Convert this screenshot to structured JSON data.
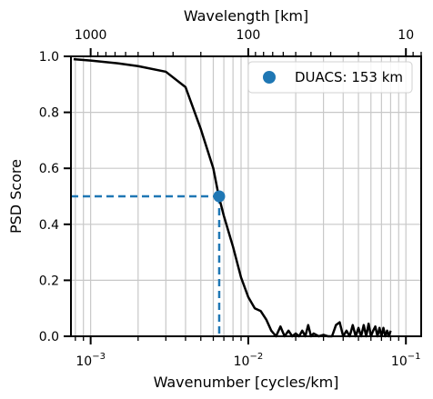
{
  "chart_data": {
    "type": "line",
    "xscale": "log",
    "xlim": [
      0.00075,
      0.125
    ],
    "ylim": [
      0.0,
      1.0
    ],
    "xlabel": "Wavenumber [cycles/km]",
    "ylabel": "PSD Score",
    "top_xlabel": "Wavelength [km]",
    "grid": true,
    "legend_position": "top-right",
    "yticks": [
      {
        "value": 0.0,
        "label": "0.0"
      },
      {
        "value": 0.2,
        "label": "0.2"
      },
      {
        "value": 0.4,
        "label": "0.4"
      },
      {
        "value": 0.6,
        "label": "0.6"
      },
      {
        "value": 0.8,
        "label": "0.8"
      },
      {
        "value": 1.0,
        "label": "1.0"
      }
    ],
    "xticks": [
      {
        "value": 0.001,
        "label": "10−3",
        "base": "10",
        "exp": "−3"
      },
      {
        "value": 0.01,
        "label": "10−2",
        "base": "10",
        "exp": "−2"
      },
      {
        "value": 0.1,
        "label": "10−1",
        "base": "10",
        "exp": "−1"
      }
    ],
    "top_xticks": [
      {
        "value": 1000,
        "label": "1000"
      },
      {
        "value": 100,
        "label": "100"
      },
      {
        "value": 10,
        "label": "10"
      }
    ],
    "series": [
      {
        "color": "#000000",
        "x": [
          0.00078,
          0.001,
          0.0015,
          0.002,
          0.003,
          0.004,
          0.005,
          0.006,
          0.0065,
          0.007,
          0.008,
          0.009,
          0.01,
          0.011,
          0.012,
          0.013,
          0.014,
          0.015,
          0.016,
          0.017,
          0.018,
          0.019,
          0.02,
          0.021,
          0.022,
          0.023,
          0.024,
          0.025,
          0.026,
          0.028,
          0.03,
          0.032,
          0.034,
          0.036,
          0.038,
          0.04,
          0.042,
          0.044,
          0.046,
          0.048,
          0.05,
          0.052,
          0.054,
          0.056,
          0.058,
          0.06,
          0.062,
          0.064,
          0.066,
          0.068,
          0.07,
          0.072,
          0.074,
          0.076,
          0.078,
          0.08
        ],
        "y": [
          0.99,
          0.985,
          0.975,
          0.965,
          0.945,
          0.89,
          0.74,
          0.6,
          0.5,
          0.43,
          0.32,
          0.21,
          0.14,
          0.1,
          0.09,
          0.06,
          0.02,
          0.0,
          0.035,
          0.0,
          0.02,
          0.0,
          0.01,
          0.0,
          0.02,
          0.0,
          0.04,
          0.0,
          0.01,
          0.0,
          0.005,
          0.0,
          0.0,
          0.04,
          0.05,
          0.0,
          0.02,
          0.0,
          0.04,
          0.0,
          0.03,
          0.0,
          0.04,
          0.0,
          0.045,
          0.0,
          0.02,
          0.035,
          0.0,
          0.03,
          0.0,
          0.03,
          0.0,
          0.02,
          0.0,
          0.02
        ]
      }
    ],
    "marker": {
      "name": "DUACS: 153 km",
      "color": "#1f77b4",
      "x": 0.00654,
      "y": 0.5
    }
  }
}
